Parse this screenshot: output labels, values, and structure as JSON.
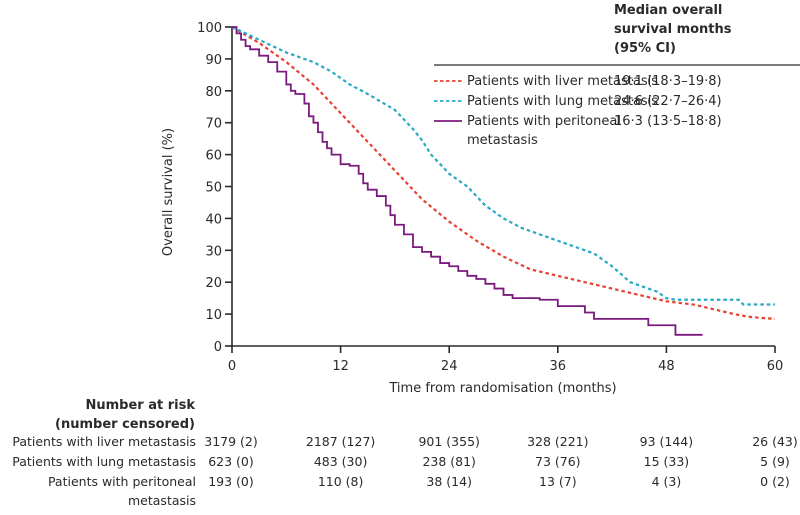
{
  "chart_data": {
    "type": "line",
    "title": "",
    "xlabel": "Time from randomisation (months)",
    "ylabel": "Overall survival (%)",
    "xlim": [
      0,
      60
    ],
    "ylim": [
      0,
      100
    ],
    "xticks": [
      0,
      12,
      24,
      36,
      48,
      60
    ],
    "yticks": [
      0,
      10,
      20,
      30,
      40,
      50,
      60,
      70,
      80,
      90,
      100
    ],
    "grid": false,
    "legend_position": "top-right",
    "legend_header": [
      "Median overall",
      "survival months",
      "(95% CI)"
    ],
    "series": [
      {
        "name": "Patients with liver metastasis",
        "label_lines": [
          "Patients with liver metastasis"
        ],
        "median": "19·1 (18·3–19·8)",
        "color": "#e8412f",
        "style": "dashed",
        "x": [
          0,
          1.5,
          3,
          4.5,
          6,
          7.5,
          9,
          10.5,
          12,
          13.5,
          15,
          16.5,
          18,
          19.5,
          21,
          22.5,
          24,
          25.5,
          27,
          28.5,
          30,
          31.5,
          33,
          34.5,
          36,
          37.5,
          39,
          40.5,
          42,
          43.5,
          45,
          46.5,
          48,
          49.5,
          51,
          52.5,
          54,
          55.5,
          57,
          58.5,
          60
        ],
        "y": [
          100,
          97.5,
          95,
          92,
          89,
          85.5,
          82,
          77.5,
          73,
          68.5,
          64,
          59.5,
          55,
          50.5,
          46,
          42.5,
          39,
          36,
          33,
          30.5,
          28,
          26,
          24,
          23,
          22,
          21,
          20,
          19,
          18,
          17,
          16,
          15,
          14,
          13.5,
          13,
          12,
          11,
          10,
          9.2,
          8.8,
          8.5
        ]
      },
      {
        "name": "Patients with lung metastasis",
        "label_lines": [
          "Patients with lung metastasis"
        ],
        "median": "24·6 (22·7–26·4)",
        "color": "#2aa8c4",
        "style": "dashed",
        "x": [
          0,
          1.5,
          3,
          4.5,
          6,
          7.5,
          9,
          10,
          11,
          12,
          13,
          14,
          15,
          16.5,
          18,
          19,
          20,
          21,
          22,
          23,
          24,
          25,
          26,
          27,
          28,
          29,
          30,
          31,
          32,
          33,
          34,
          35,
          36,
          37,
          38,
          39,
          40,
          41,
          42,
          43,
          44,
          45,
          46,
          47,
          48,
          49,
          50,
          52,
          54,
          56,
          56.5,
          58,
          60
        ],
        "y": [
          100,
          98,
          96,
          94,
          92,
          90.5,
          89,
          87.5,
          86,
          84,
          82,
          80.5,
          79,
          76.5,
          74,
          71,
          68,
          64.5,
          60,
          57,
          54,
          52,
          50,
          47,
          44,
          42,
          40,
          38.5,
          37,
          36,
          35,
          34,
          33,
          32,
          31,
          30,
          29,
          27,
          25,
          22.5,
          20,
          19,
          18,
          17,
          15,
          14.5,
          14.5,
          14.5,
          14.5,
          14.5,
          13,
          13,
          13
        ]
      },
      {
        "name": "Patients with peritoneal metastasis",
        "label_lines": [
          "Patients with peritoneal",
          "metastasis"
        ],
        "median": "16·3 (13·5–18·8)",
        "color": "#7b1a7e",
        "style": "step",
        "x": [
          0,
          0.5,
          1,
          1.5,
          2,
          3,
          4,
          5,
          6,
          6.5,
          7,
          8,
          8.5,
          9,
          9.5,
          10,
          10.5,
          11,
          12,
          13,
          14,
          14.5,
          15,
          16,
          17,
          17.5,
          18,
          19,
          20,
          21,
          22,
          23,
          24,
          25,
          26,
          27,
          28,
          29,
          30,
          31,
          32,
          33,
          34,
          35,
          36,
          37,
          38,
          39,
          40,
          42,
          44,
          46,
          48,
          49,
          50,
          52
        ],
        "y": [
          100,
          98,
          96,
          94,
          93,
          91,
          89,
          86,
          82,
          80,
          79,
          76,
          72,
          70,
          67,
          64,
          62,
          60,
          57,
          56.5,
          54,
          51,
          49,
          47,
          44,
          41,
          38,
          35,
          31,
          29.5,
          28,
          26,
          25,
          23.5,
          22,
          21,
          19.5,
          18,
          16,
          15,
          15,
          15,
          14.5,
          14.5,
          12.5,
          12.5,
          12.5,
          10.5,
          8.5,
          8.5,
          8.5,
          6.5,
          6.5,
          3.5,
          3.5,
          3.5
        ]
      }
    ],
    "risk_table": {
      "header": [
        "Number at risk",
        "(number censored)"
      ],
      "times": [
        0,
        12,
        24,
        36,
        48,
        60
      ],
      "rows": [
        {
          "label_lines": [
            "Patients with liver metastasis"
          ],
          "values": [
            "3179 (2)",
            "2187 (127)",
            "901 (355)",
            "328 (221)",
            "93 (144)",
            "26 (43)"
          ]
        },
        {
          "label_lines": [
            "Patients with lung metastasis"
          ],
          "values": [
            "623 (0)",
            "483 (30)",
            "238 (81)",
            "73 (76)",
            "15 (33)",
            "5 (9)"
          ]
        },
        {
          "label_lines": [
            "Patients with peritoneal",
            "metastasis"
          ],
          "values": [
            "193 (0)",
            "110 (8)",
            "38 (14)",
            "13 (7)",
            "4 (3)",
            "0 (2)"
          ]
        }
      ]
    }
  }
}
